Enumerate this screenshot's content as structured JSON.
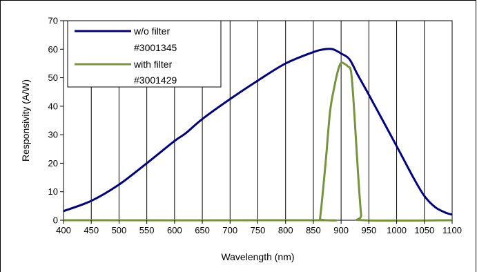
{
  "chart_data": {
    "type": "line",
    "title": "",
    "xlabel": "Wavelength (nm)",
    "ylabel": "Responsivity (A/W)",
    "xlim": [
      400,
      1100
    ],
    "ylim": [
      0,
      70
    ],
    "x_ticks": [
      400,
      450,
      500,
      550,
      600,
      650,
      700,
      750,
      800,
      850,
      900,
      950,
      1000,
      1050,
      1100
    ],
    "y_ticks": [
      0,
      10,
      20,
      30,
      40,
      50,
      60,
      70
    ],
    "grid": "vertical",
    "legend_position": "top-left",
    "series": [
      {
        "name_lines": [
          "w/o filter",
          "#3001345"
        ],
        "color": "#000080",
        "points": [
          [
            400,
            3.2
          ],
          [
            450,
            6.8
          ],
          [
            500,
            12.5
          ],
          [
            550,
            20.0
          ],
          [
            600,
            27.8
          ],
          [
            620,
            30.5
          ],
          [
            650,
            35.5
          ],
          [
            700,
            42.5
          ],
          [
            750,
            49.0
          ],
          [
            800,
            55.0
          ],
          [
            850,
            59.0
          ],
          [
            870,
            60.0
          ],
          [
            885,
            60.0
          ],
          [
            900,
            58.5
          ],
          [
            915,
            56.5
          ],
          [
            930,
            51.0
          ],
          [
            950,
            44.0
          ],
          [
            1000,
            26.0
          ],
          [
            1030,
            15.0
          ],
          [
            1050,
            8.5
          ],
          [
            1070,
            4.5
          ],
          [
            1090,
            2.5
          ],
          [
            1100,
            2.0
          ]
        ]
      },
      {
        "name_lines": [
          "with filter",
          "#3001429"
        ],
        "color": "#77933C",
        "points": [
          [
            400,
            0
          ],
          [
            858,
            0
          ],
          [
            862,
            0.5
          ],
          [
            872,
            20.0
          ],
          [
            880,
            38.0
          ],
          [
            888,
            47.0
          ],
          [
            895,
            53.0
          ],
          [
            900,
            55.2
          ],
          [
            905,
            55.0
          ],
          [
            912,
            54.0
          ],
          [
            918,
            52.0
          ],
          [
            923,
            40.0
          ],
          [
            930,
            18.0
          ],
          [
            936,
            2.0
          ],
          [
            940,
            0
          ],
          [
            1100,
            0
          ]
        ]
      }
    ]
  }
}
